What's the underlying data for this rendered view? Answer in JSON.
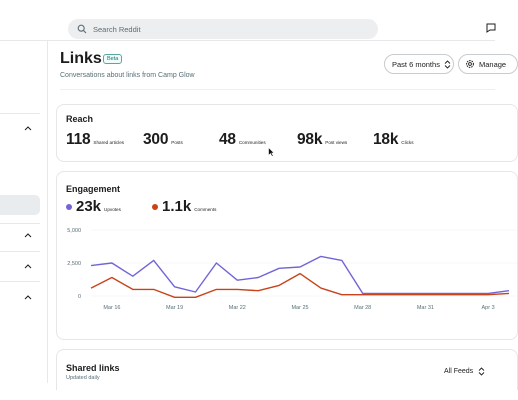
{
  "search": {
    "placeholder": "Search Reddit"
  },
  "header": {
    "title": "Links",
    "badge": "Beta",
    "subtitle": "Conversations about links from Camp Glow",
    "period_label": "Past 6 months",
    "manage_label": "Manage"
  },
  "reach": {
    "title": "Reach",
    "stats": [
      {
        "value": "118",
        "label": "Shared articles"
      },
      {
        "value": "300",
        "label": "Posts"
      },
      {
        "value": "48",
        "label": "Communities"
      },
      {
        "value": "98k",
        "label": "Post views"
      },
      {
        "value": "18k",
        "label": "Clicks"
      }
    ]
  },
  "engagement": {
    "title": "Engagement",
    "legend": [
      {
        "value": "23k",
        "label": "Upvotes",
        "color": "#7065d8"
      },
      {
        "value": "1.1k",
        "label": "Comments",
        "color": "#c9431a"
      }
    ]
  },
  "chart_data": {
    "type": "line",
    "x": [
      "Mar 15",
      "Mar 16",
      "Mar 17",
      "Mar 18",
      "Mar 19",
      "Mar 20",
      "Mar 21",
      "Mar 22",
      "Mar 23",
      "Mar 24",
      "Mar 25",
      "Mar 26",
      "Mar 27",
      "Mar 28",
      "Mar 29",
      "Mar 30",
      "Mar 31",
      "Apr 1",
      "Apr 2",
      "Apr 3",
      "Apr 4"
    ],
    "x_tick_labels": [
      "Mar 16",
      "Mar 19",
      "Mar 22",
      "Mar 25",
      "Mar 28",
      "Mar 31",
      "Apr 3"
    ],
    "y_tick_labels": [
      "0",
      "2,500",
      "5,000"
    ],
    "ylim": [
      0,
      5000
    ],
    "series": [
      {
        "name": "Upvotes",
        "color": "#7065d8",
        "values": [
          2300,
          2500,
          1500,
          2700,
          700,
          300,
          2500,
          1200,
          1400,
          2100,
          2200,
          3000,
          2700,
          200,
          200,
          200,
          200,
          200,
          200,
          200,
          400
        ]
      },
      {
        "name": "Comments",
        "color": "#c9431a",
        "values": [
          600,
          1400,
          500,
          500,
          -100,
          -100,
          500,
          500,
          400,
          800,
          1700,
          600,
          100,
          100,
          100,
          100,
          100,
          100,
          100,
          100,
          200
        ]
      }
    ]
  },
  "shared_links": {
    "title": "Shared links",
    "subtitle": "Updated daily",
    "feed_label": "All Feeds"
  }
}
